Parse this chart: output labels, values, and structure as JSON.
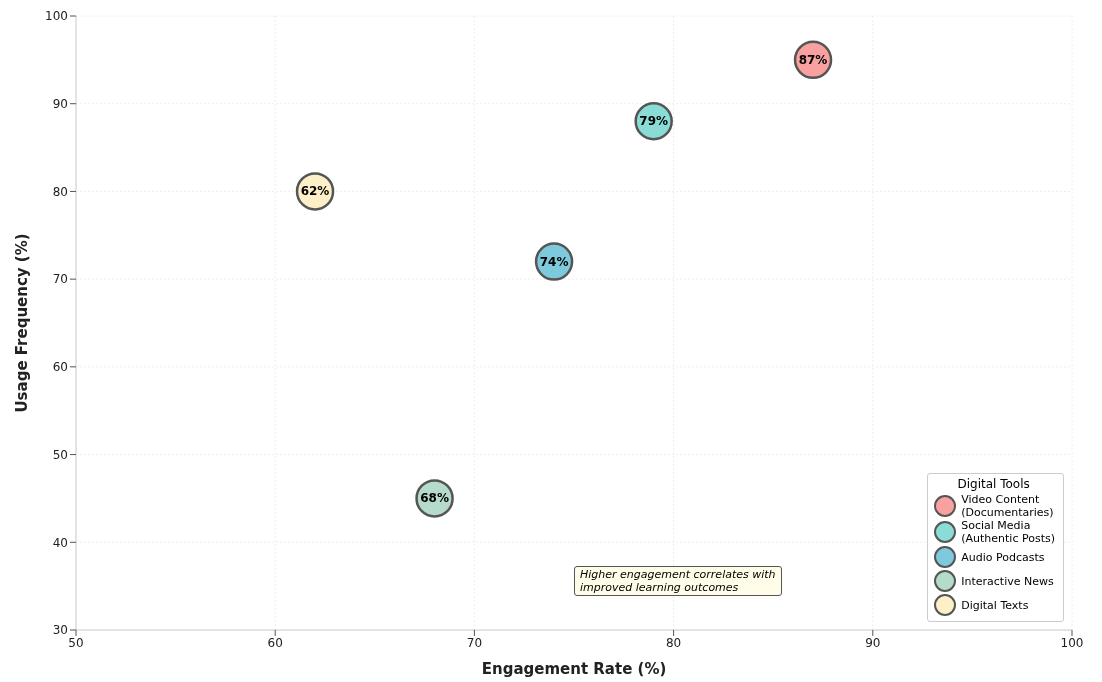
{
  "chart_data": {
    "type": "bubble",
    "xlabel": "Engagement Rate (%)",
    "ylabel": "Usage Frequency (%)",
    "legend_title": "Digital Tools",
    "xlim": [
      50,
      100
    ],
    "xticks": [
      50,
      60,
      70,
      80,
      90,
      100
    ],
    "ylim": [
      30,
      100
    ],
    "yticks": [
      30,
      40,
      50,
      60,
      70,
      80,
      90,
      100
    ],
    "grid": true,
    "legend": "bottom right",
    "annotations": [
      "Higher engagement correlates with\nimproved learning outcomes",
      {
        "text": "87%",
        "x": 87,
        "y": 95
      },
      {
        "text": "79%",
        "x": 79,
        "y": 88
      },
      {
        "text": "74%",
        "x": 74,
        "y": 72
      },
      {
        "text": "68%",
        "x": 68,
        "y": 45
      },
      {
        "text": "62%",
        "x": 62,
        "y": 80
      }
    ],
    "series": [
      {
        "name": "Video Content\n(Documentaries)",
        "color": "#f9a0a0",
        "x": [
          87
        ],
        "values": [
          95
        ],
        "sizes": [
          1
        ]
      },
      {
        "name": "Social Media\n(Authentic Posts)",
        "color": "#8adcd6",
        "x": [
          79
        ],
        "values": [
          88
        ],
        "sizes": [
          1
        ]
      },
      {
        "name": "Audio Podcasts",
        "color": "#7fc9dc",
        "x": [
          74
        ],
        "values": [
          72
        ],
        "sizes": [
          1
        ]
      },
      {
        "name": "Interactive News",
        "color": "#b5dccb",
        "x": [
          68
        ],
        "values": [
          45
        ],
        "sizes": [
          1
        ]
      },
      {
        "name": "Digital Texts",
        "color": "#fdf0c8",
        "x": [
          62
        ],
        "values": [
          80
        ],
        "sizes": [
          1
        ]
      }
    ]
  }
}
